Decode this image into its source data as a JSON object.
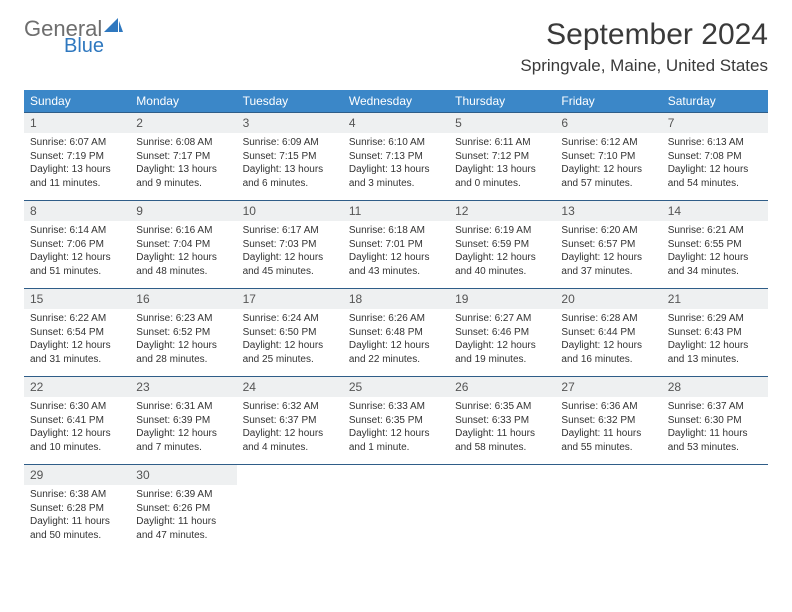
{
  "logo": {
    "text1": "General",
    "text2": "Blue",
    "sail_color": "#2f78bf",
    "gray": "#6e6e6e"
  },
  "title": "September 2024",
  "location": "Springvale, Maine, United States",
  "colors": {
    "header_bg": "#3b87c8",
    "header_text": "#ffffff",
    "row_border": "#2f5d88",
    "daynum_bg": "#eef0f1",
    "text": "#333333"
  },
  "weekdays": [
    "Sunday",
    "Monday",
    "Tuesday",
    "Wednesday",
    "Thursday",
    "Friday",
    "Saturday"
  ],
  "days": [
    {
      "n": "1",
      "sr": "6:07 AM",
      "ss": "7:19 PM",
      "dl": "13 hours and 11 minutes."
    },
    {
      "n": "2",
      "sr": "6:08 AM",
      "ss": "7:17 PM",
      "dl": "13 hours and 9 minutes."
    },
    {
      "n": "3",
      "sr": "6:09 AM",
      "ss": "7:15 PM",
      "dl": "13 hours and 6 minutes."
    },
    {
      "n": "4",
      "sr": "6:10 AM",
      "ss": "7:13 PM",
      "dl": "13 hours and 3 minutes."
    },
    {
      "n": "5",
      "sr": "6:11 AM",
      "ss": "7:12 PM",
      "dl": "13 hours and 0 minutes."
    },
    {
      "n": "6",
      "sr": "6:12 AM",
      "ss": "7:10 PM",
      "dl": "12 hours and 57 minutes."
    },
    {
      "n": "7",
      "sr": "6:13 AM",
      "ss": "7:08 PM",
      "dl": "12 hours and 54 minutes."
    },
    {
      "n": "8",
      "sr": "6:14 AM",
      "ss": "7:06 PM",
      "dl": "12 hours and 51 minutes."
    },
    {
      "n": "9",
      "sr": "6:16 AM",
      "ss": "7:04 PM",
      "dl": "12 hours and 48 minutes."
    },
    {
      "n": "10",
      "sr": "6:17 AM",
      "ss": "7:03 PM",
      "dl": "12 hours and 45 minutes."
    },
    {
      "n": "11",
      "sr": "6:18 AM",
      "ss": "7:01 PM",
      "dl": "12 hours and 43 minutes."
    },
    {
      "n": "12",
      "sr": "6:19 AM",
      "ss": "6:59 PM",
      "dl": "12 hours and 40 minutes."
    },
    {
      "n": "13",
      "sr": "6:20 AM",
      "ss": "6:57 PM",
      "dl": "12 hours and 37 minutes."
    },
    {
      "n": "14",
      "sr": "6:21 AM",
      "ss": "6:55 PM",
      "dl": "12 hours and 34 minutes."
    },
    {
      "n": "15",
      "sr": "6:22 AM",
      "ss": "6:54 PM",
      "dl": "12 hours and 31 minutes."
    },
    {
      "n": "16",
      "sr": "6:23 AM",
      "ss": "6:52 PM",
      "dl": "12 hours and 28 minutes."
    },
    {
      "n": "17",
      "sr": "6:24 AM",
      "ss": "6:50 PM",
      "dl": "12 hours and 25 minutes."
    },
    {
      "n": "18",
      "sr": "6:26 AM",
      "ss": "6:48 PM",
      "dl": "12 hours and 22 minutes."
    },
    {
      "n": "19",
      "sr": "6:27 AM",
      "ss": "6:46 PM",
      "dl": "12 hours and 19 minutes."
    },
    {
      "n": "20",
      "sr": "6:28 AM",
      "ss": "6:44 PM",
      "dl": "12 hours and 16 minutes."
    },
    {
      "n": "21",
      "sr": "6:29 AM",
      "ss": "6:43 PM",
      "dl": "12 hours and 13 minutes."
    },
    {
      "n": "22",
      "sr": "6:30 AM",
      "ss": "6:41 PM",
      "dl": "12 hours and 10 minutes."
    },
    {
      "n": "23",
      "sr": "6:31 AM",
      "ss": "6:39 PM",
      "dl": "12 hours and 7 minutes."
    },
    {
      "n": "24",
      "sr": "6:32 AM",
      "ss": "6:37 PM",
      "dl": "12 hours and 4 minutes."
    },
    {
      "n": "25",
      "sr": "6:33 AM",
      "ss": "6:35 PM",
      "dl": "12 hours and 1 minute."
    },
    {
      "n": "26",
      "sr": "6:35 AM",
      "ss": "6:33 PM",
      "dl": "11 hours and 58 minutes."
    },
    {
      "n": "27",
      "sr": "6:36 AM",
      "ss": "6:32 PM",
      "dl": "11 hours and 55 minutes."
    },
    {
      "n": "28",
      "sr": "6:37 AM",
      "ss": "6:30 PM",
      "dl": "11 hours and 53 minutes."
    },
    {
      "n": "29",
      "sr": "6:38 AM",
      "ss": "6:28 PM",
      "dl": "11 hours and 50 minutes."
    },
    {
      "n": "30",
      "sr": "6:39 AM",
      "ss": "6:26 PM",
      "dl": "11 hours and 47 minutes."
    }
  ],
  "labels": {
    "sunrise": "Sunrise:",
    "sunset": "Sunset:",
    "daylight": "Daylight:"
  },
  "layout": {
    "start_weekday": 0,
    "total_cells": 35
  }
}
